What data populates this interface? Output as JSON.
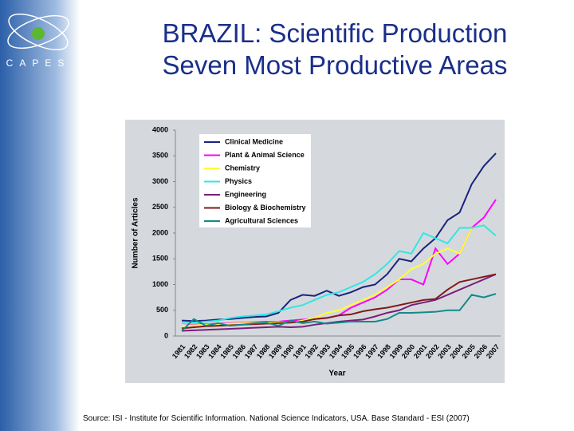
{
  "slide": {
    "logo": "CAPES",
    "title": [
      "BRAZIL: Scientific Production",
      "Seven Most Productive Areas"
    ],
    "source": "Source: ISI - Institute for Scientific Information. National Science Indicators, USA. Base Standard - ESI (2007)"
  },
  "chart_data": {
    "type": "line",
    "x_label": "Year",
    "y_label": "Number of Articles",
    "categories": [
      "1981",
      "1982",
      "1983",
      "1984",
      "1985",
      "1986",
      "1987",
      "1988",
      "1989",
      "1990",
      "1991",
      "1992",
      "1993",
      "1994",
      "1995",
      "1996",
      "1997",
      "1998",
      "1999",
      "2000",
      "2001",
      "2002",
      "2003",
      "2004",
      "2005",
      "2006",
      "2007"
    ],
    "ylim": [
      0,
      4000
    ],
    "yticks": [
      0,
      500,
      1000,
      1500,
      2000,
      2500,
      3000,
      3500,
      4000
    ],
    "grid": false,
    "legend": "upper-left",
    "series": [
      {
        "name": "Clinical Medicine",
        "color": "#1a237e",
        "values": [
          300,
          290,
          300,
          320,
          330,
          350,
          370,
          380,
          450,
          700,
          800,
          780,
          880,
          780,
          850,
          950,
          1000,
          1200,
          1500,
          1450,
          1700,
          1900,
          2250,
          2400,
          2950,
          3300,
          3550
        ]
      },
      {
        "name": "Plant & Animal Science",
        "color": "#ff00ff",
        "values": [
          200,
          220,
          230,
          240,
          250,
          260,
          270,
          280,
          280,
          300,
          320,
          330,
          350,
          400,
          550,
          650,
          750,
          900,
          1100,
          1100,
          1000,
          1700,
          1400,
          1600,
          2100,
          2300,
          2650
        ]
      },
      {
        "name": "Chemistry",
        "color": "#ffff33",
        "values": [
          200,
          210,
          220,
          230,
          240,
          250,
          260,
          260,
          270,
          250,
          300,
          350,
          450,
          500,
          600,
          700,
          800,
          950,
          1100,
          1300,
          1400,
          1600,
          1700,
          1600,
          2100,
          2150,
          1950
        ]
      },
      {
        "name": "Physics",
        "color": "#33e5e5",
        "values": [
          250,
          260,
          280,
          300,
          350,
          380,
          400,
          420,
          480,
          550,
          600,
          700,
          800,
          850,
          950,
          1050,
          1200,
          1400,
          1650,
          1600,
          2000,
          1900,
          1800,
          2100,
          2100,
          2150,
          1950
        ]
      },
      {
        "name": "Engineering",
        "color": "#7b1e7a",
        "values": [
          100,
          110,
          120,
          130,
          140,
          150,
          160,
          170,
          180,
          170,
          180,
          220,
          250,
          280,
          300,
          320,
          380,
          450,
          500,
          600,
          650,
          700,
          800,
          900,
          1000,
          1100,
          1200
        ]
      },
      {
        "name": "Biology & Biochemistry",
        "color": "#7f1a1a",
        "values": [
          150,
          170,
          190,
          200,
          210,
          220,
          230,
          240,
          250,
          260,
          280,
          330,
          350,
          400,
          420,
          480,
          520,
          550,
          600,
          650,
          700,
          720,
          900,
          1050,
          1100,
          1150,
          1200
        ]
      },
      {
        "name": "Agricultural Sciences",
        "color": "#138a8a",
        "values": [
          100,
          330,
          200,
          250,
          200,
          220,
          250,
          260,
          200,
          300,
          250,
          280,
          240,
          260,
          280,
          280,
          280,
          330,
          450,
          450,
          460,
          470,
          500,
          500,
          800,
          750,
          820
        ]
      }
    ]
  }
}
